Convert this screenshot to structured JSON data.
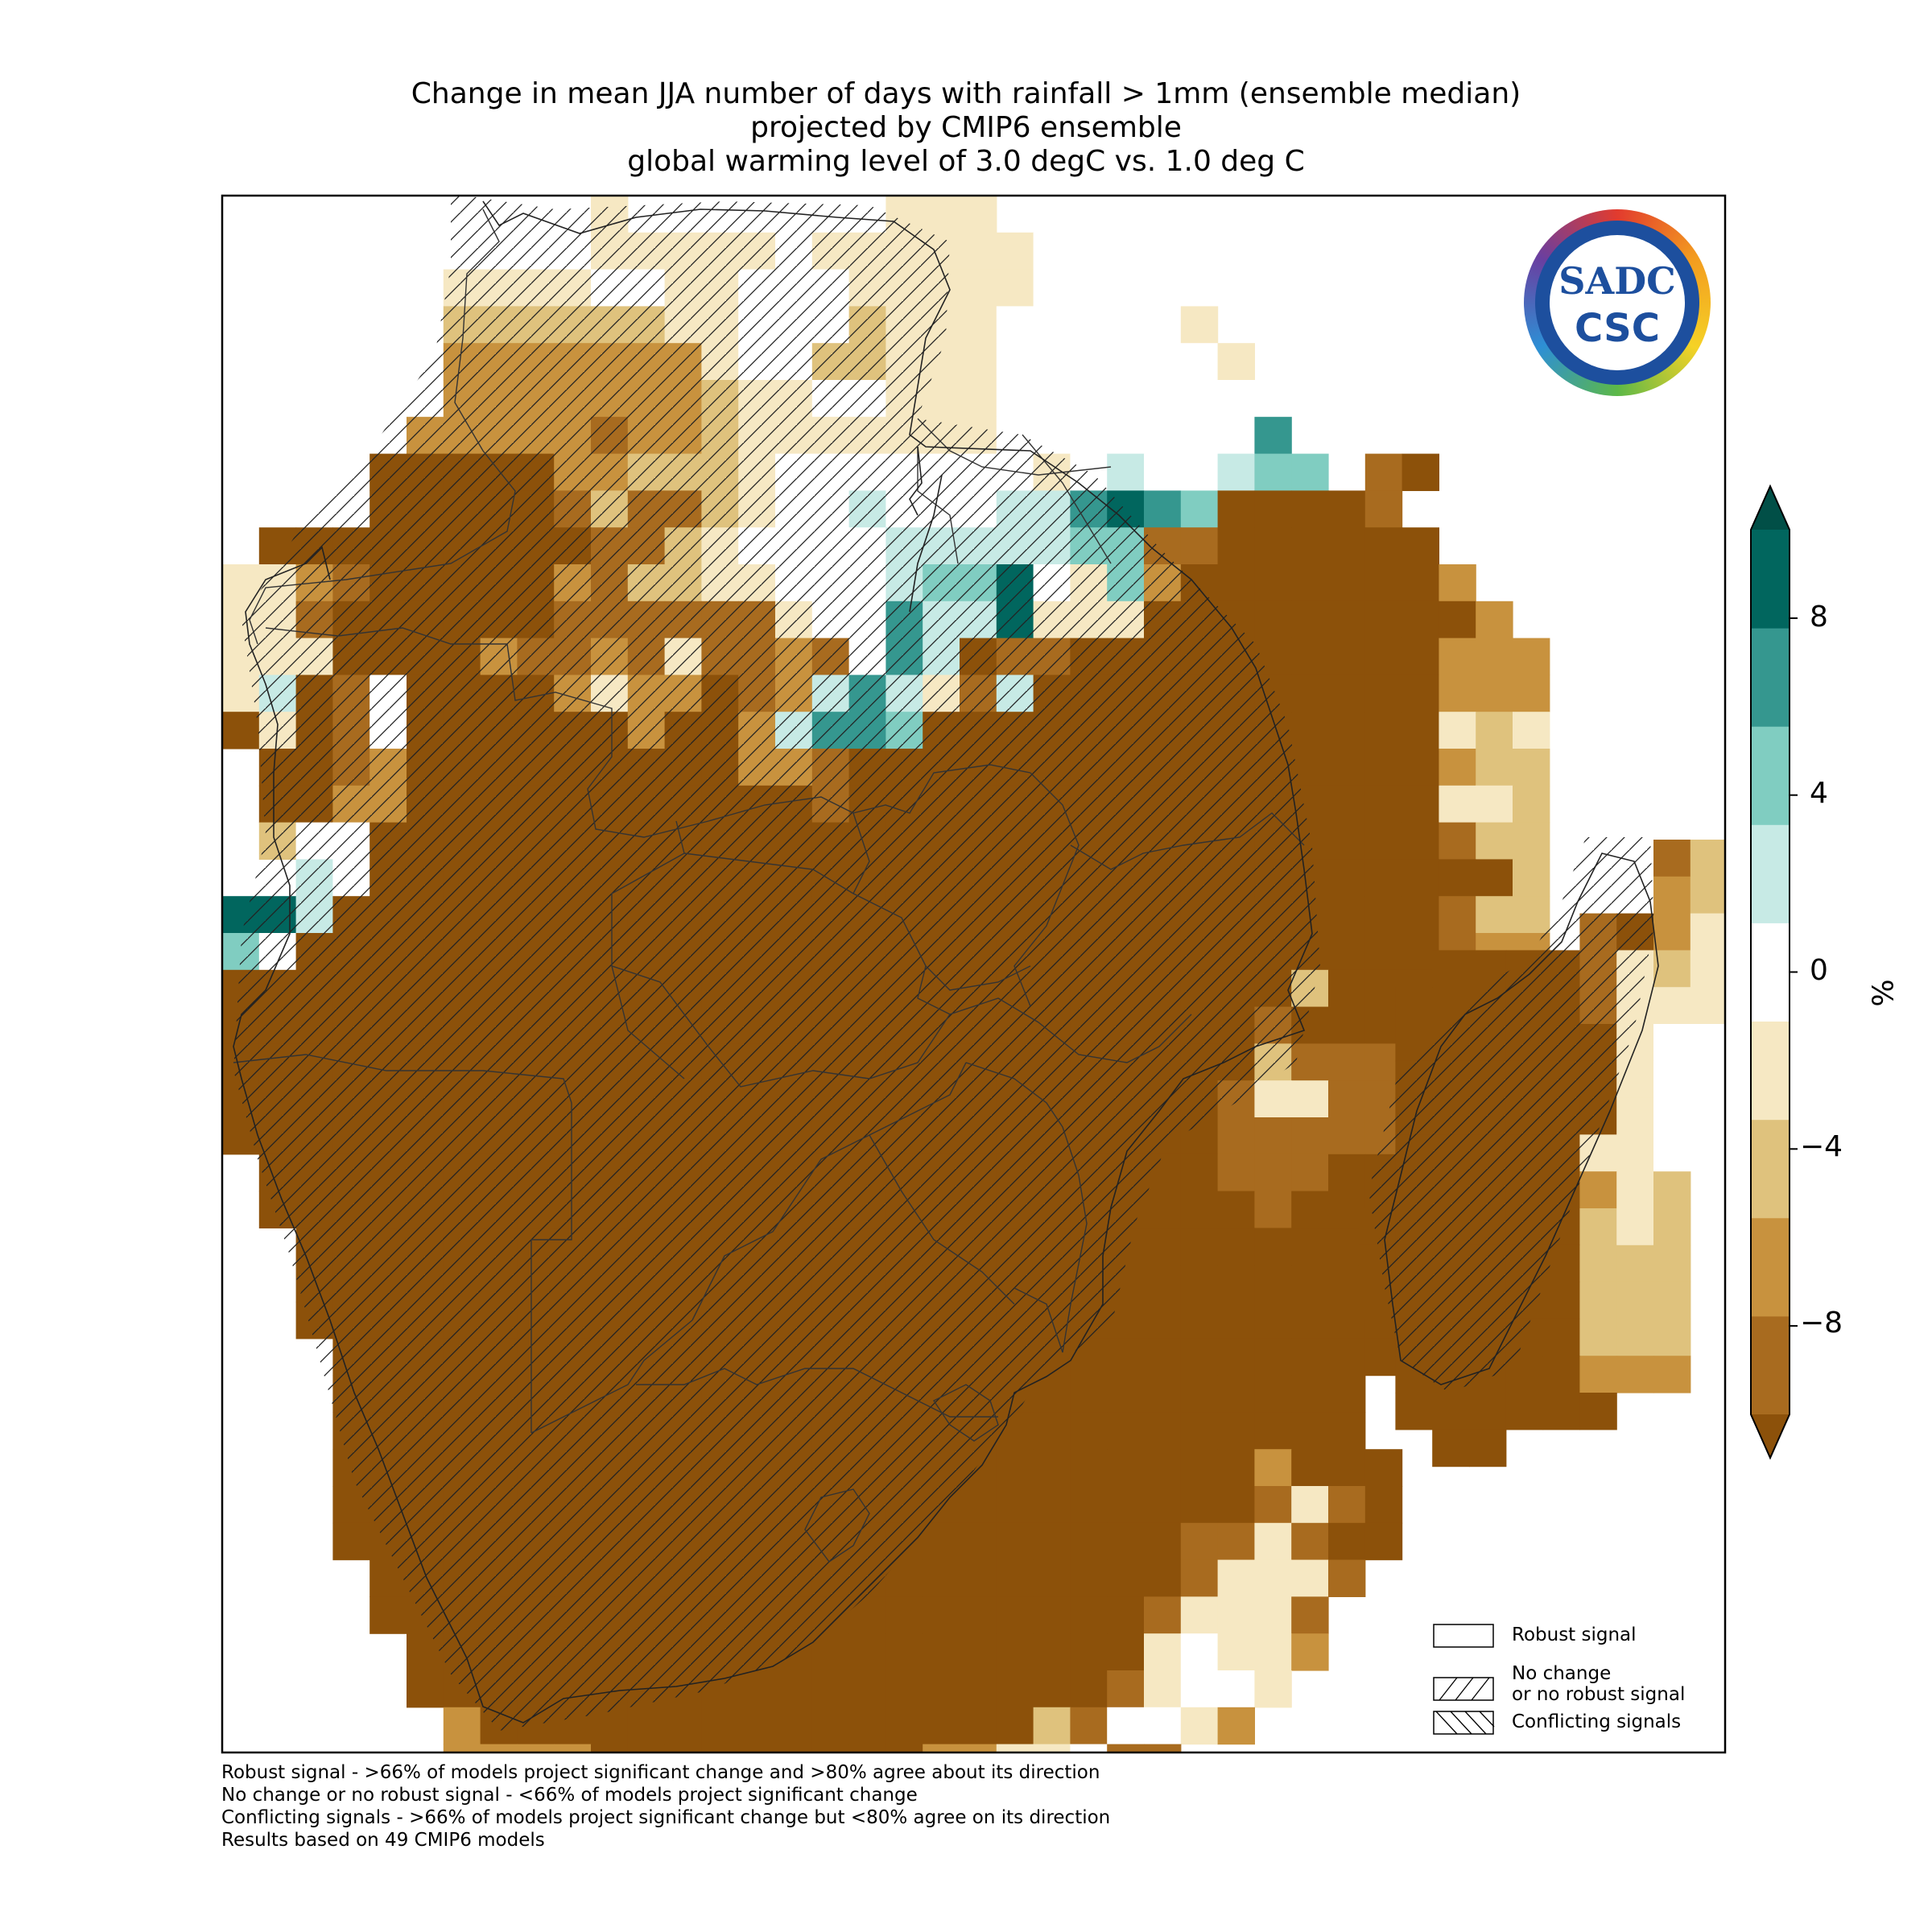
{
  "title": {
    "line1": "Change in mean JJA number of days with rainfall > 1mm (ensemble median)",
    "line2": "projected by CMIP6 ensemble",
    "line3": "global warming level of 3.0 degC vs. 1.0 deg C"
  },
  "colorbar": {
    "unit": "%",
    "ticks": [
      "8",
      "4",
      "0",
      "−4",
      "−8"
    ],
    "colors": [
      "#a86b1f",
      "#c8923e",
      "#dfc27d",
      "#f6e8c3",
      "#ffffff",
      "#c7eae5",
      "#80cdc1",
      "#35978f",
      "#01665e"
    ],
    "extend_low": "#8c510a",
    "extend_high": "#014f47"
  },
  "legend": {
    "robust": "Robust signal",
    "no_change_1": "No change",
    "no_change_2": "or no robust signal",
    "conflicting": "Conflicting signals"
  },
  "footnotes": {
    "robust": "Robust signal - >66% of models project significant change and >80% agree about its direction",
    "no_change": "No change or no robust signal - <66% of models project significant change",
    "conflicting": "Conflicting signals - >66% of models project significant change but <80% agree on its direction",
    "models": "Results based on 49 CMIP6 models"
  },
  "logo": {
    "top": "SADC",
    "bottom": "CSC"
  },
  "map_colors": {
    "dark": "#8c510a",
    "brown": "#a86b1f",
    "tan": "#c8923e",
    "sand": "#dfc27d",
    "cream": "#f6e8c3",
    "white": "#ffffff",
    "teal_light": "#c7eae5",
    "teal_mid": "#80cdc1",
    "teal": "#35978f",
    "teal_dark": "#01665e"
  }
}
